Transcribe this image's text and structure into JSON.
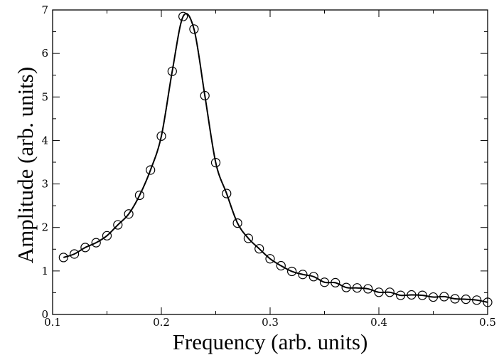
{
  "chart_data": {
    "type": "line",
    "xlabel": "Frequency (arb. units)",
    "ylabel": "Amplitude (arb. units)",
    "xlim": [
      0.1,
      0.5
    ],
    "ylim": [
      0,
      7
    ],
    "x_ticks": [
      0.1,
      0.2,
      0.3,
      0.4,
      0.5
    ],
    "x_tick_labels": [
      "0.1",
      "0.2",
      "0.3",
      "0.4",
      "0.5"
    ],
    "y_ticks": [
      0,
      1,
      2,
      3,
      4,
      5,
      6,
      7
    ],
    "y_tick_labels": [
      "0",
      "1",
      "2",
      "3",
      "4",
      "5",
      "6",
      "7"
    ],
    "grid": false,
    "series": [
      {
        "style": "line-with-open-circles",
        "color": "#000000",
        "x": [
          0.11,
          0.12,
          0.13,
          0.14,
          0.15,
          0.16,
          0.17,
          0.18,
          0.19,
          0.2,
          0.21,
          0.22,
          0.23,
          0.24,
          0.25,
          0.26,
          0.27,
          0.28,
          0.29,
          0.3,
          0.31,
          0.32,
          0.33,
          0.34,
          0.35,
          0.36,
          0.37,
          0.38,
          0.39,
          0.4,
          0.41,
          0.42,
          0.43,
          0.44,
          0.45,
          0.46,
          0.47,
          0.48,
          0.49,
          0.5
        ],
        "y": [
          1.31,
          1.39,
          1.54,
          1.65,
          1.81,
          2.06,
          2.31,
          2.74,
          3.32,
          4.1,
          5.59,
          6.85,
          6.56,
          5.03,
          3.49,
          2.78,
          2.1,
          1.75,
          1.51,
          1.28,
          1.12,
          0.99,
          0.92,
          0.87,
          0.74,
          0.73,
          0.62,
          0.61,
          0.59,
          0.51,
          0.51,
          0.44,
          0.45,
          0.44,
          0.4,
          0.41,
          0.36,
          0.35,
          0.33,
          0.28
        ]
      }
    ]
  }
}
